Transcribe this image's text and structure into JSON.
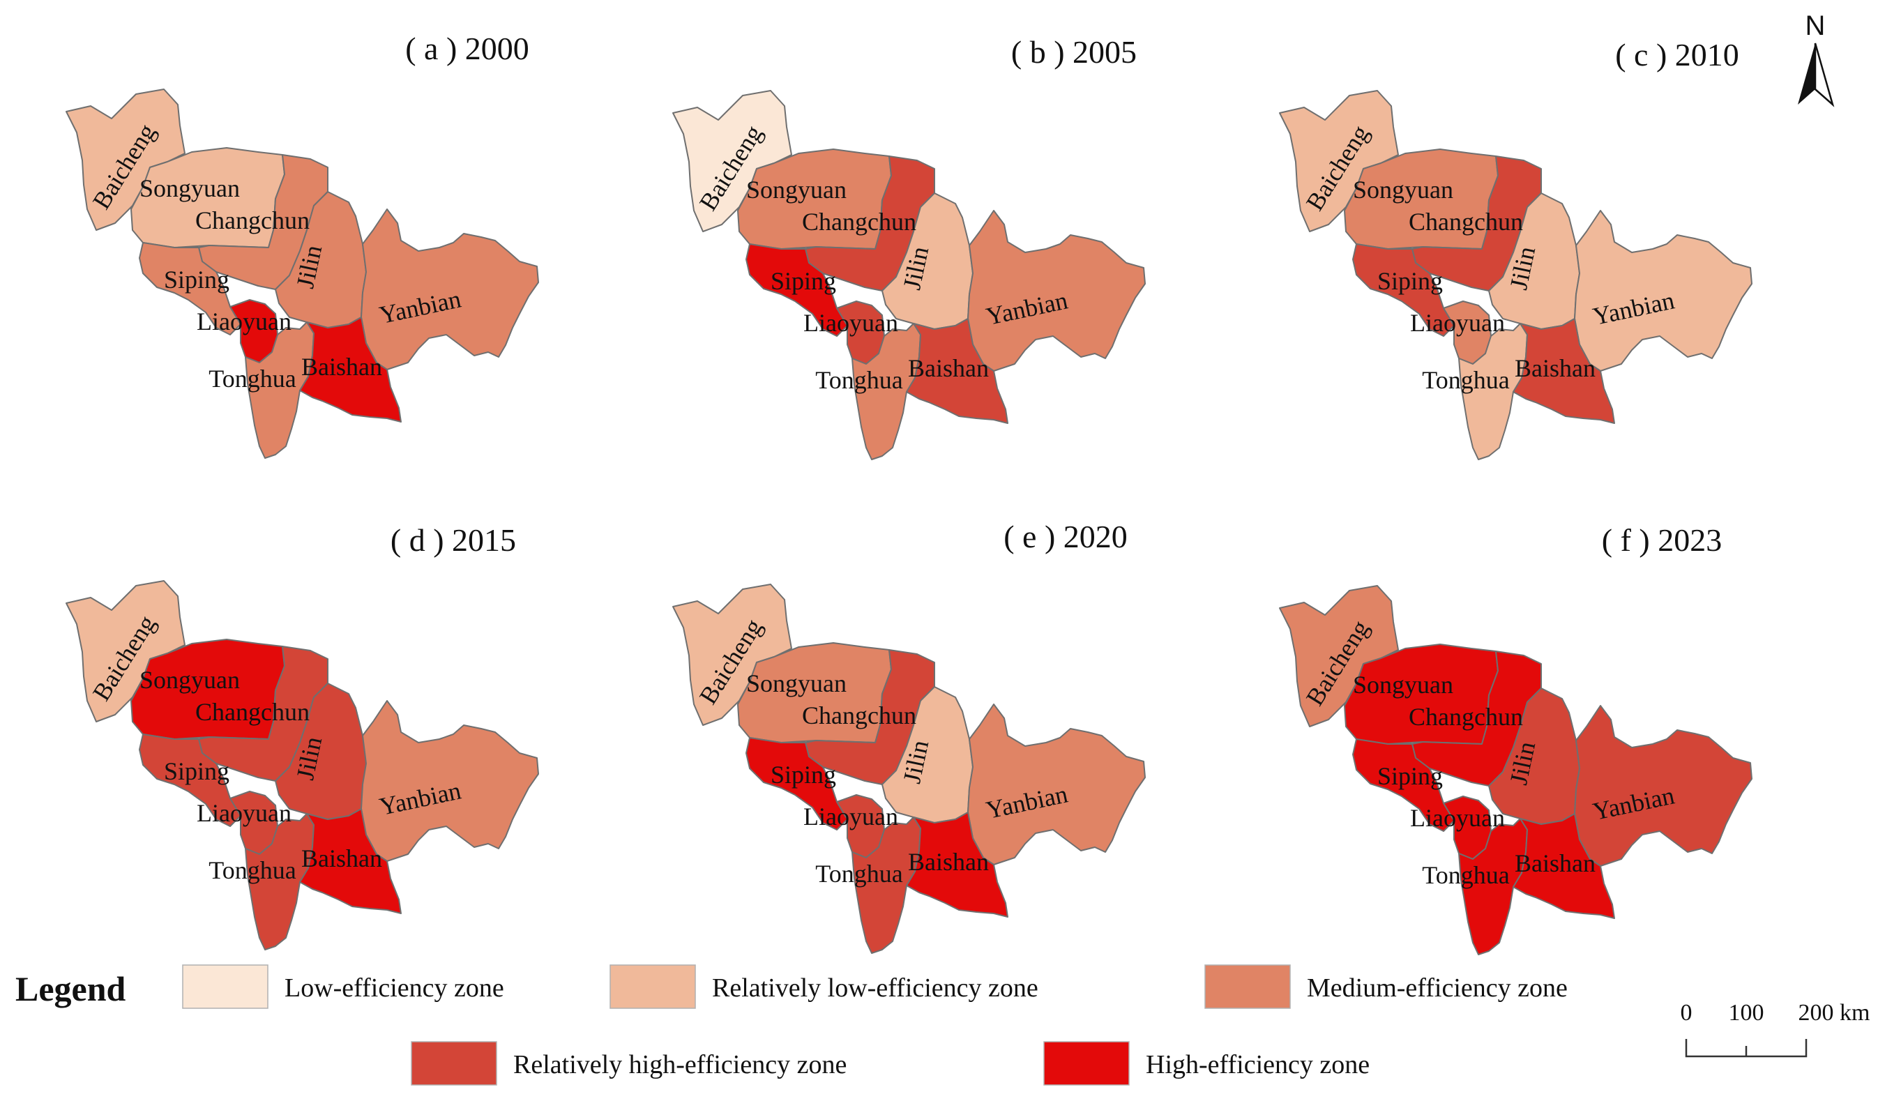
{
  "figure": {
    "panels": [
      {
        "title": "( a ) 2000",
        "zones": {
          "Baicheng": "rl",
          "Songyuan": "rl",
          "Changchun": "md",
          "Jilin": "md",
          "Siping": "md",
          "Liaoyuan": "hi",
          "Yanbian": "md",
          "Tonghua": "md",
          "Baishan": "hi"
        }
      },
      {
        "title": "( b ) 2005",
        "zones": {
          "Baicheng": "lo",
          "Songyuan": "md",
          "Changchun": "rh",
          "Jilin": "rl",
          "Siping": "hi",
          "Liaoyuan": "rh",
          "Yanbian": "md",
          "Tonghua": "md",
          "Baishan": "rh"
        }
      },
      {
        "title": "( c ) 2010",
        "zones": {
          "Baicheng": "rl",
          "Songyuan": "md",
          "Changchun": "rh",
          "Jilin": "rl",
          "Siping": "rh",
          "Liaoyuan": "md",
          "Yanbian": "rl",
          "Tonghua": "rl",
          "Baishan": "rh"
        }
      },
      {
        "title": "( d ) 2015",
        "zones": {
          "Baicheng": "rl",
          "Songyuan": "hi",
          "Changchun": "rh",
          "Jilin": "rh",
          "Siping": "rh",
          "Liaoyuan": "rh",
          "Yanbian": "md",
          "Tonghua": "rh",
          "Baishan": "hi"
        }
      },
      {
        "title": "( e ) 2020",
        "zones": {
          "Baicheng": "rl",
          "Songyuan": "md",
          "Changchun": "rh",
          "Jilin": "rl",
          "Siping": "hi",
          "Liaoyuan": "rh",
          "Yanbian": "md",
          "Tonghua": "rh",
          "Baishan": "hi"
        }
      },
      {
        "title": "( f ) 2023",
        "zones": {
          "Baicheng": "md",
          "Songyuan": "hi",
          "Changchun": "hi",
          "Jilin": "rh",
          "Siping": "hi",
          "Liaoyuan": "hi",
          "Yanbian": "rh",
          "Tonghua": "hi",
          "Baishan": "hi"
        }
      }
    ],
    "region_labels": [
      "Baicheng",
      "Songyuan",
      "Changchun",
      "Jilin",
      "Siping",
      "Liaoyuan",
      "Yanbian",
      "Tonghua",
      "Baishan"
    ],
    "legend": {
      "title": "Legend",
      "items": [
        {
          "key": "lo",
          "label": "Low-efficiency zone",
          "color": "#fbe7d6"
        },
        {
          "key": "rl",
          "label": "Relatively low-efficiency zone",
          "color": "#f0b99a"
        },
        {
          "key": "md",
          "label": "Medium-efficiency zone",
          "color": "#e08465"
        },
        {
          "key": "rh",
          "label": "Relatively high-efficiency zone",
          "color": "#d34537"
        },
        {
          "key": "hi",
          "label": "High-efficiency zone",
          "color": "#e30a0a"
        }
      ]
    },
    "scale_bar": {
      "labels": [
        "0",
        "100",
        "200 km"
      ]
    },
    "north_arrow": {
      "label": "N"
    }
  }
}
